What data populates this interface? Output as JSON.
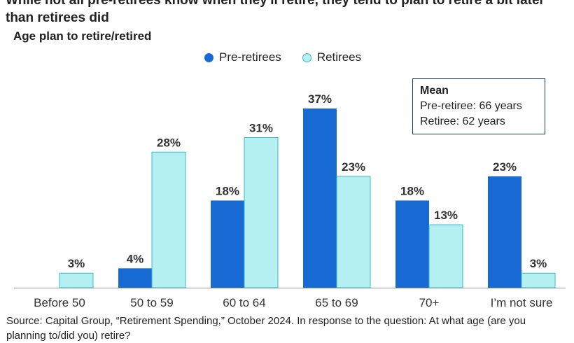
{
  "chart_data": {
    "type": "bar",
    "title": "While not all pre-retirees know when they'll retire, they tend to plan to retire a bit later than retirees did",
    "subtitle": "Age plan to retire/retired",
    "categories": [
      "Before 50",
      "50 to 59",
      "60 to 64",
      "65 to 69",
      "70+",
      "I’m not sure"
    ],
    "series": [
      {
        "name": "Pre-retirees",
        "values": [
          0,
          4,
          18,
          37,
          18,
          23
        ],
        "color": "#1769d4"
      },
      {
        "name": "Retirees",
        "values": [
          3,
          28,
          31,
          23,
          13,
          3
        ],
        "color": "#b4f0f2",
        "stroke": "#3bb8c4"
      }
    ],
    "value_suffix": "%",
    "ylim": [
      0,
      40
    ],
    "grid": false,
    "legend": "top-center",
    "annotation": {
      "heading": "Mean",
      "lines": [
        "Pre-retiree: 66 years",
        "Retiree: 62 years"
      ]
    },
    "source": "Source: Capital Group, “Retirement Spending,” October 2024. In response to the question: At what age (are you planning to/did you) retire?"
  }
}
